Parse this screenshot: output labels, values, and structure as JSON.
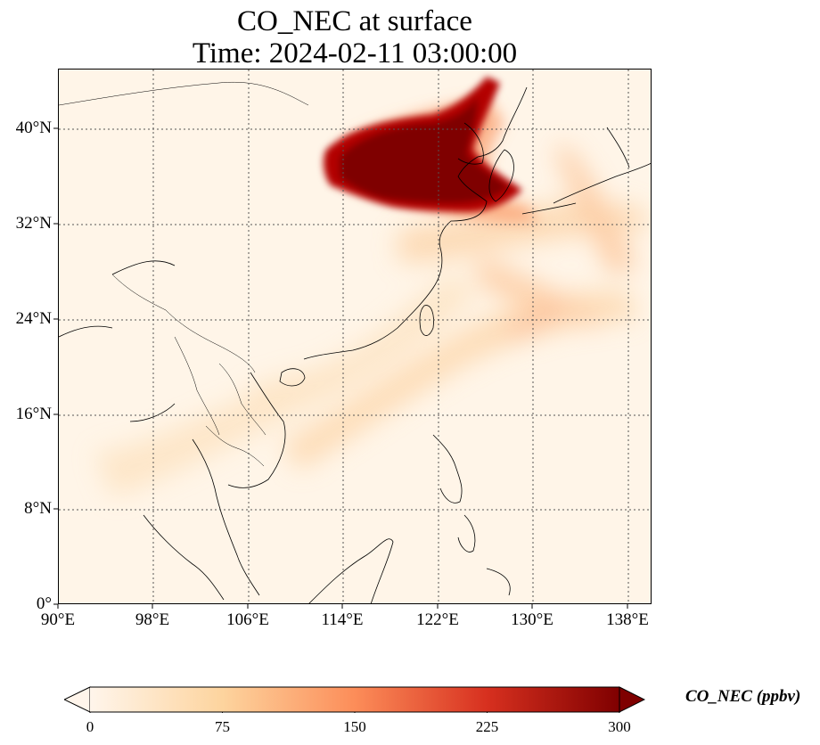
{
  "title": {
    "line1": "CO_NEC at surface",
    "line2": "Time: 2024-02-11 03:00:00"
  },
  "axes": {
    "x_ticks": [
      "90°E",
      "98°E",
      "106°E",
      "114°E",
      "122°E",
      "130°E",
      "138°E"
    ],
    "y_ticks": [
      "40°N",
      "32°N",
      "24°N",
      "16°N",
      "8°N",
      "0°"
    ],
    "lon_range": [
      90,
      140
    ],
    "lat_range": [
      0,
      45
    ],
    "gridlines": "dotted"
  },
  "colorbar": {
    "label": "CO_NEC (ppbv)",
    "ticks": [
      "0",
      "75",
      "150",
      "225",
      "300"
    ],
    "range": [
      0,
      300
    ],
    "colormap": "OrRd",
    "extend": "both",
    "colors": [
      "#fff5eb",
      "#fdd49e",
      "#fc8d59",
      "#d7301f",
      "#7f0000"
    ]
  }
}
